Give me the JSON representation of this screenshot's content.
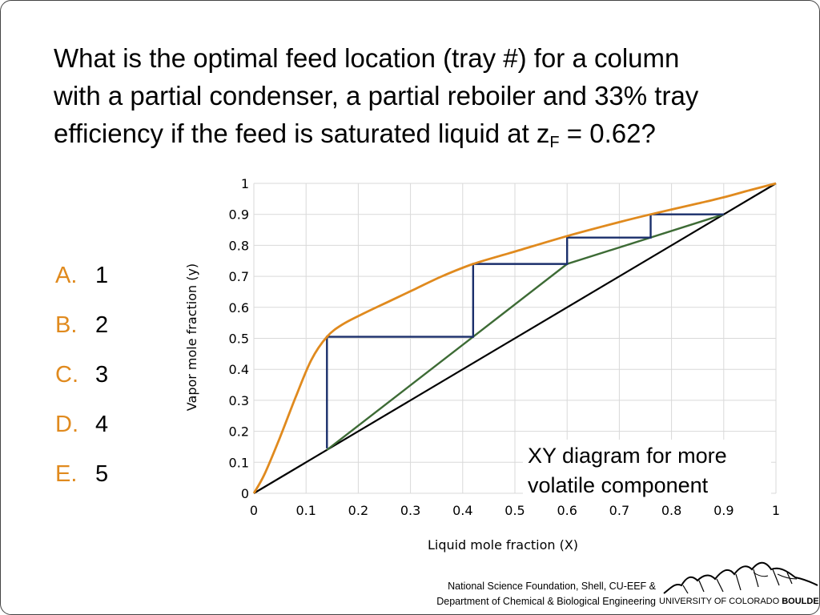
{
  "question": {
    "line1": "What is the optimal feed location (tray #) for a column",
    "line2": "with a partial condenser, a partial reboiler and 33% tray",
    "line3_pre": "efficiency if the feed is saturated liquid at z",
    "line3_sub": "F",
    "line3_post": " = 0.62?"
  },
  "options": [
    {
      "letter": "A.",
      "value": "1"
    },
    {
      "letter": "B.",
      "value": "2"
    },
    {
      "letter": "C.",
      "value": "3"
    },
    {
      "letter": "D.",
      "value": "4"
    },
    {
      "letter": "E.",
      "value": "5"
    }
  ],
  "colors": {
    "accent": "#e08a1e",
    "equilibrium": "#e08a1e",
    "operating": "#3d6b35",
    "stairs": "#1a2f6b",
    "diagonal": "#000000"
  },
  "chart_data": {
    "type": "line",
    "xlabel": "Liquid mole fraction (X)",
    "ylabel": "Vapor mole fraction (y)",
    "xlim": [
      0,
      1
    ],
    "ylim": [
      0,
      1
    ],
    "grid": true,
    "xticks": [
      "0",
      "0.1",
      "0.2",
      "0.3",
      "0.4",
      "0.5",
      "0.6",
      "0.7",
      "0.8",
      "0.9",
      "1"
    ],
    "yticks": [
      "0",
      "0.1",
      "0.2",
      "0.3",
      "0.4",
      "0.5",
      "0.6",
      "0.7",
      "0.8",
      "0.9",
      "1"
    ],
    "annotation": [
      "XY diagram for more",
      "volatile component"
    ],
    "series": [
      {
        "role": "equilibrium",
        "x": [
          0,
          0.02,
          0.05,
          0.08,
          0.11,
          0.14,
          0.17,
          0.21,
          0.26,
          0.31,
          0.36,
          0.42,
          0.5,
          0.6,
          0.7,
          0.76,
          0.85,
          0.9,
          0.95,
          1.0
        ],
        "y": [
          0,
          0.06,
          0.18,
          0.31,
          0.43,
          0.505,
          0.545,
          0.58,
          0.62,
          0.66,
          0.7,
          0.74,
          0.78,
          0.83,
          0.875,
          0.9,
          0.935,
          0.955,
          0.978,
          1.0
        ]
      },
      {
        "role": "diagonal",
        "x": [
          0,
          1
        ],
        "y": [
          0,
          1
        ]
      },
      {
        "role": "operating-line",
        "x": [
          0.14,
          0.42,
          0.6,
          0.9
        ],
        "y": [
          0.14,
          0.505,
          0.74,
          0.9
        ]
      },
      {
        "role": "stages",
        "x": [
          0.9,
          0.76,
          0.76,
          0.6,
          0.6,
          0.42,
          0.42,
          0.14,
          0.14
        ],
        "y": [
          0.9,
          0.9,
          0.825,
          0.825,
          0.74,
          0.74,
          0.505,
          0.505,
          0.145
        ]
      }
    ]
  },
  "footer": {
    "line1": "National Science Foundation, Shell, CU-EEF &",
    "line2": "Department of Chemical & Biological Engineering"
  },
  "logo": {
    "university": "UNIVERSITY OF COLORADO",
    "city": "BOULDER"
  }
}
